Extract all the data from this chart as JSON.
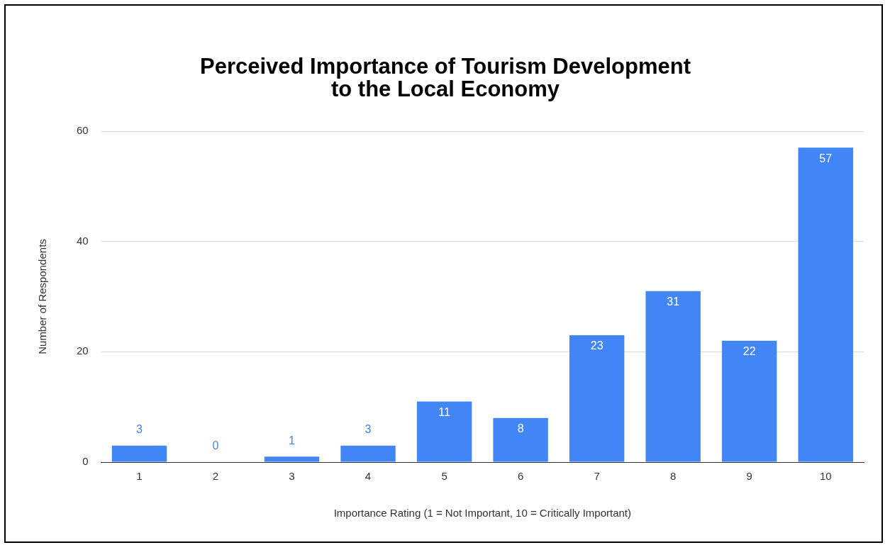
{
  "chart_data": {
    "type": "bar",
    "title": "Perceived Importance of Tourism Development to the Local Economy",
    "xlabel": "Importance Rating (1 = Not Important, 10 = Critically Important)",
    "ylabel": "Number of Respondents",
    "categories": [
      "1",
      "2",
      "3",
      "4",
      "5",
      "6",
      "7",
      "8",
      "9",
      "10"
    ],
    "values": [
      3,
      0,
      1,
      3,
      11,
      8,
      23,
      31,
      22,
      57
    ],
    "color": "#4285f4",
    "ylim": [
      0,
      60
    ],
    "yticks": [
      0,
      20,
      40,
      60
    ],
    "grid": "y",
    "data_labels": true,
    "legend": false
  }
}
